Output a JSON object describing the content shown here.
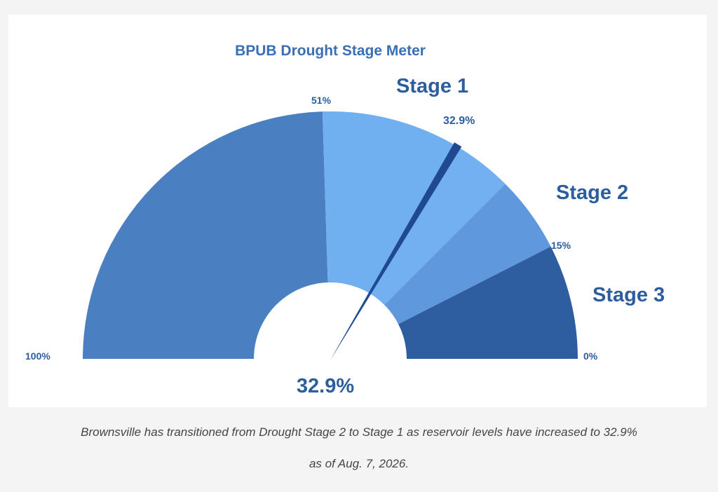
{
  "chart_data": {
    "type": "gauge",
    "title": "BPUB Drought Stage Meter",
    "range": [
      0,
      100
    ],
    "reading": 32.9,
    "reading_label": "32.9%",
    "needle_label": "32.9%",
    "bands": [
      {
        "from": 51,
        "to": 100,
        "color": "#4a80c2"
      },
      {
        "from": 32.9,
        "to": 51,
        "color": "#70aff0"
      },
      {
        "from": 25,
        "to": 32.9,
        "color": "#72b0f1"
      },
      {
        "from": 15,
        "to": 25,
        "color": "#5f98dc"
      },
      {
        "from": 0,
        "to": 15,
        "color": "#2e5da0"
      }
    ],
    "tick_labels": [
      {
        "value": 100,
        "label": "100%"
      },
      {
        "value": 51,
        "label": "51%"
      },
      {
        "value": 15,
        "label": "15%"
      },
      {
        "value": 0,
        "label": "0%"
      }
    ],
    "stage_labels": [
      {
        "name": "Stage 1",
        "value": 41
      },
      {
        "name": "Stage 2",
        "value": 20
      },
      {
        "name": "Stage 3",
        "value": 7.5
      }
    ],
    "needle_color": "#1f4a91",
    "label_color": "#2c5d9f"
  },
  "caption": {
    "line1": "Brownsville has transitioned from Drought Stage 2 to Stage 1 as reservoir levels have increased to 32.9%",
    "line2": "as of Aug. 7, 2026."
  }
}
